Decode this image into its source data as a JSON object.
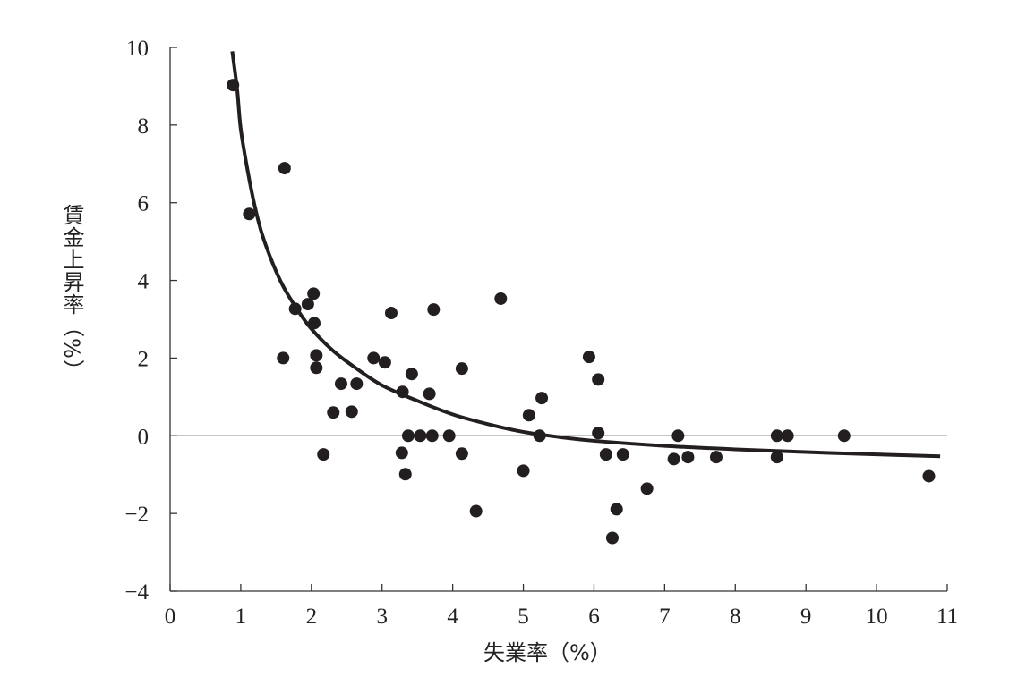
{
  "chart_data": {
    "type": "scatter",
    "title": "",
    "xlabel": "失業率（%）",
    "ylabel": "賃金上昇率（%）",
    "xlim": [
      0,
      11
    ],
    "ylim": [
      -4,
      10
    ],
    "xticks": [
      "0",
      "1",
      "2",
      "3",
      "4",
      "5",
      "6",
      "7",
      "8",
      "9",
      "10",
      "11"
    ],
    "yticks": [
      "10",
      "8",
      "6",
      "4",
      "2",
      "0",
      "−2",
      "−4"
    ],
    "ytick_values": [
      10,
      8,
      6,
      4,
      2,
      0,
      -2,
      -4
    ],
    "grid": false,
    "zero_line": true,
    "points": [
      [
        0.89,
        9.03
      ],
      [
        1.12,
        5.71
      ],
      [
        1.62,
        6.89
      ],
      [
        1.6,
        2.0
      ],
      [
        1.77,
        3.27
      ],
      [
        1.95,
        3.39
      ],
      [
        2.03,
        3.66
      ],
      [
        2.04,
        2.9
      ],
      [
        2.07,
        2.07
      ],
      [
        2.07,
        1.75
      ],
      [
        2.17,
        -0.48
      ],
      [
        2.31,
        0.6
      ],
      [
        2.42,
        1.34
      ],
      [
        2.57,
        0.62
      ],
      [
        2.64,
        1.34
      ],
      [
        2.88,
        2.0
      ],
      [
        3.04,
        1.89
      ],
      [
        3.13,
        3.16
      ],
      [
        3.28,
        -0.44
      ],
      [
        3.29,
        1.13
      ],
      [
        3.33,
        -0.99
      ],
      [
        3.37,
        0
      ],
      [
        3.42,
        1.59
      ],
      [
        3.54,
        0
      ],
      [
        3.67,
        1.08
      ],
      [
        3.71,
        0
      ],
      [
        3.73,
        3.25
      ],
      [
        3.95,
        0
      ],
      [
        4.13,
        1.73
      ],
      [
        4.13,
        -0.46
      ],
      [
        4.33,
        -1.94
      ],
      [
        4.68,
        3.53
      ],
      [
        5.0,
        -0.9
      ],
      [
        5.08,
        0.53
      ],
      [
        5.23,
        0
      ],
      [
        5.26,
        0.97
      ],
      [
        5.93,
        2.03
      ],
      [
        6.06,
        1.45
      ],
      [
        6.06,
        0.07
      ],
      [
        6.17,
        -0.48
      ],
      [
        6.26,
        -2.63
      ],
      [
        6.32,
        -1.89
      ],
      [
        6.41,
        -0.48
      ],
      [
        6.75,
        -1.36
      ],
      [
        7.13,
        -0.6
      ],
      [
        7.19,
        0
      ],
      [
        7.33,
        -0.55
      ],
      [
        7.73,
        -0.55
      ],
      [
        8.59,
        0
      ],
      [
        8.59,
        -0.55
      ],
      [
        8.74,
        0
      ],
      [
        9.54,
        0
      ],
      [
        10.74,
        -1.04
      ]
    ],
    "curve": {
      "name": "fitted curve",
      "points": [
        [
          0.88,
          9.9
        ],
        [
          0.95,
          8.9
        ],
        [
          1.0,
          7.9
        ],
        [
          1.1,
          6.8
        ],
        [
          1.2,
          5.9
        ],
        [
          1.3,
          5.2
        ],
        [
          1.45,
          4.45
        ],
        [
          1.6,
          3.85
        ],
        [
          1.8,
          3.25
        ],
        [
          2.0,
          2.75
        ],
        [
          2.3,
          2.2
        ],
        [
          2.6,
          1.78
        ],
        [
          3.0,
          1.3
        ],
        [
          3.5,
          0.9
        ],
        [
          4.0,
          0.55
        ],
        [
          4.5,
          0.3
        ],
        [
          5.0,
          0.1
        ],
        [
          5.5,
          -0.03
        ],
        [
          6.0,
          -0.13
        ],
        [
          7.0,
          -0.26
        ],
        [
          8.0,
          -0.35
        ],
        [
          9.0,
          -0.42
        ],
        [
          10.0,
          -0.48
        ],
        [
          10.9,
          -0.53
        ]
      ]
    }
  }
}
